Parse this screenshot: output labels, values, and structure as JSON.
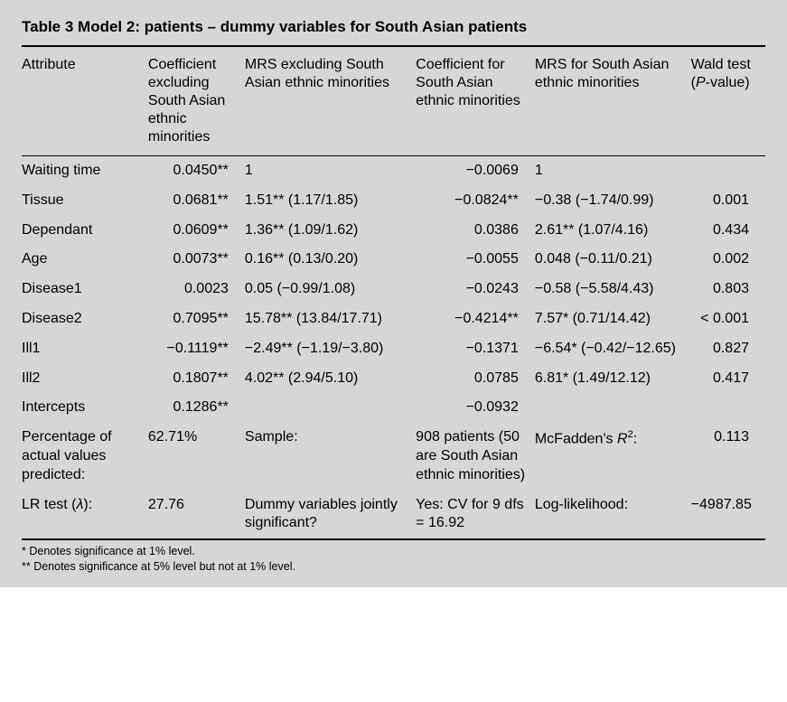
{
  "title_prefix": "Table 3",
  "title_rest": "  Model 2: patients – dummy variables for South Asian patients",
  "headers": {
    "c1": "Attribute",
    "c2": "Coefficient excluding South Asian ethnic minorities",
    "c3": "MRS excluding South Asian ethnic minorities",
    "c4": "Coefficient for South Asian ethnic minorities",
    "c5": "MRS for South Asian ethnic minorities",
    "c6_a": "Wald test",
    "c6_b": "(P-value)"
  },
  "rows": [
    {
      "attr": "Waiting time",
      "coef_ex": "0.0450**",
      "mrs_ex": "1",
      "coef_sa": "−0.0069",
      "mrs_sa": "1",
      "wald": ""
    },
    {
      "attr": "Tissue",
      "coef_ex": "0.0681**",
      "mrs_ex": "1.51** (1.17/1.85)",
      "coef_sa": "−0.0824**",
      "mrs_sa": "−0.38 (−1.74/0.99)",
      "wald": "0.001"
    },
    {
      "attr": "Dependant",
      "coef_ex": "0.0609**",
      "mrs_ex": "1.36** (1.09/1.62)",
      "coef_sa": "0.0386",
      "mrs_sa": "2.61** (1.07/4.16)",
      "wald": "0.434"
    },
    {
      "attr": "Age",
      "coef_ex": "0.0073**",
      "mrs_ex": "0.16** (0.13/0.20)",
      "coef_sa": "−0.0055",
      "mrs_sa": "0.048 (−0.11/0.21)",
      "wald": "0.002"
    },
    {
      "attr": "Disease1",
      "coef_ex": "0.0023",
      "mrs_ex": "0.05 (−0.99/1.08)",
      "coef_sa": "−0.0243",
      "mrs_sa": "−0.58 (−5.58/4.43)",
      "wald": "0.803"
    },
    {
      "attr": "Disease2",
      "coef_ex": "0.7095**",
      "mrs_ex": "15.78** (13.84/17.71)",
      "coef_sa": "−0.4214**",
      "mrs_sa": "7.57* (0.71/14.42)",
      "wald": "< 0.001"
    },
    {
      "attr": "Ill1",
      "coef_ex": "−0.1119**",
      "mrs_ex": "−2.49** (−1.19/−3.80)",
      "coef_sa": "−0.1371",
      "mrs_sa": "−6.54* (−0.42/−12.65)",
      "wald": "0.827"
    },
    {
      "attr": "Ill2",
      "coef_ex": "0.1807**",
      "mrs_ex": "4.02** (2.94/5.10)",
      "coef_sa": "0.0785",
      "mrs_sa": "6.81* (1.49/12.12)",
      "wald": "0.417"
    },
    {
      "attr": "Intercepts",
      "coef_ex": "0.1286**",
      "mrs_ex": "",
      "coef_sa": "−0.0932",
      "mrs_sa": "",
      "wald": ""
    }
  ],
  "summary1": {
    "c1": "Percentage of actual values predicted:",
    "c2": "62.71%",
    "c3": "Sample:",
    "c4": "908 patients (50 are South Asian ethnic minorities)",
    "c5_a": "McFadden's ",
    "c5_b": "R",
    "c5_c": "2",
    "c5_d": ":",
    "c6": "0.113"
  },
  "summary2": {
    "c1_a": "LR test (",
    "c1_b": "λ",
    "c1_c": "):",
    "c2": "27.76",
    "c3": "Dummy variables jointly significant?",
    "c4": "Yes: CV for 9 dfs = 16.92",
    "c5": "Log-likelihood:",
    "c6": "−4987.85"
  },
  "footnotes": {
    "f1": "* Denotes significance at 1% level.",
    "f2": "** Denotes significance at 5% level but not at 1% level."
  }
}
